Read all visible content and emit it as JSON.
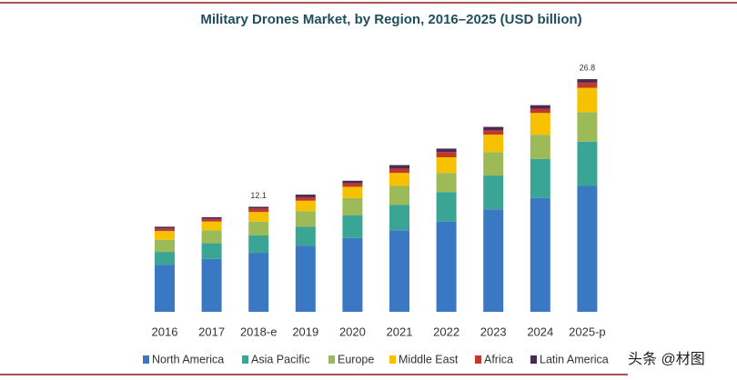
{
  "chart_data": {
    "type": "stacked-bar",
    "title": "Military Drones Market, by Region, 2016–2025 (USD billion)",
    "categories": [
      "2016",
      "2017",
      "2018-e",
      "2019",
      "2020",
      "2021",
      "2022",
      "2023",
      "2024",
      "2025-p"
    ],
    "series": [
      {
        "name": "North America",
        "color": "#3b78c3",
        "values": [
          5.4,
          6.1,
          6.8,
          7.6,
          8.5,
          9.4,
          10.4,
          11.8,
          13.1,
          14.5
        ]
      },
      {
        "name": "Asia Pacific",
        "color": "#3aa595",
        "values": [
          1.5,
          1.8,
          2.0,
          2.2,
          2.6,
          2.9,
          3.4,
          3.9,
          4.5,
          5.1
        ]
      },
      {
        "name": "Europe",
        "color": "#9cbb58",
        "values": [
          1.4,
          1.5,
          1.6,
          1.8,
          2.0,
          2.2,
          2.2,
          2.7,
          2.8,
          3.4
        ]
      },
      {
        "name": "Middle East",
        "color": "#f7c100",
        "values": [
          1.0,
          1.0,
          1.1,
          1.2,
          1.3,
          1.5,
          1.8,
          2.0,
          2.5,
          2.8
        ]
      },
      {
        "name": "Africa",
        "color": "#c0392b",
        "values": [
          0.3,
          0.3,
          0.4,
          0.4,
          0.4,
          0.5,
          0.6,
          0.5,
          0.5,
          0.6
        ]
      },
      {
        "name": "Latin America",
        "color": "#4a2a55",
        "values": [
          0.2,
          0.2,
          0.2,
          0.3,
          0.3,
          0.4,
          0.4,
          0.4,
          0.4,
          0.4
        ]
      }
    ],
    "totals": [
      null,
      null,
      12.1,
      null,
      null,
      null,
      null,
      null,
      null,
      26.8
    ],
    "legend": "bottom",
    "watermark": "头条 @材图"
  }
}
